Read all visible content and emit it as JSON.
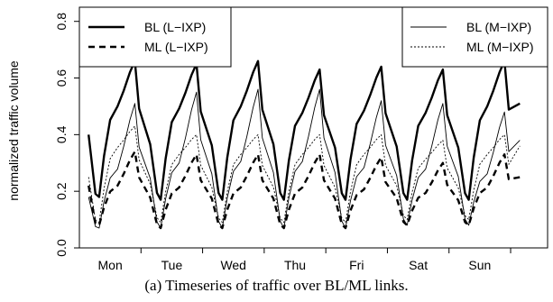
{
  "caption": "(a) Timeseries of traffic over BL/ML links.",
  "chart_data": {
    "type": "line",
    "title": "",
    "xlabel": "",
    "ylabel": "normalized traffic volume",
    "categories": [
      "Mon",
      "Tue",
      "Wed",
      "Thu",
      "Fri",
      "Sat",
      "Sun"
    ],
    "xlim": [
      0,
      7.6
    ],
    "ylim": [
      0,
      0.85
    ],
    "yticks": [
      0.0,
      0.2,
      0.4,
      0.6,
      0.8
    ],
    "ytick_labels": [
      "0.0",
      "0.2",
      "0.4",
      "0.6",
      "0.8"
    ],
    "grid": false,
    "legends": [
      {
        "placement": "top-left",
        "entries": [
          "BL (L−IXP)",
          "ML (L−IXP)"
        ]
      },
      {
        "placement": "top-right",
        "entries": [
          "BL (M−IXP)",
          "ML (M−IXP)"
        ]
      }
    ],
    "series": [
      {
        "name": "BL (L−IXP)",
        "style": "solid-thick",
        "daily_profile": {
          "start": 0.4,
          "trough": 0.18,
          "shoulder": 0.5,
          "peak": 0.66
        },
        "peaks_by_day": [
          0.66,
          0.65,
          0.66,
          0.63,
          0.64,
          0.63,
          0.66
        ],
        "troughs_by_day": [
          0.18,
          0.17,
          0.17,
          0.17,
          0.17,
          0.17,
          0.17
        ],
        "end": 0.51
      },
      {
        "name": "ML (L−IXP)",
        "style": "dashed-thick",
        "daily_profile": {
          "start": 0.22,
          "trough": 0.08,
          "shoulder": 0.22,
          "peak": 0.34
        },
        "peaks_by_day": [
          0.34,
          0.33,
          0.33,
          0.33,
          0.32,
          0.3,
          0.33
        ],
        "troughs_by_day": [
          0.08,
          0.07,
          0.07,
          0.07,
          0.07,
          0.08,
          0.08
        ],
        "end": 0.25
      },
      {
        "name": "BL (M−IXP)",
        "style": "solid-thin",
        "daily_profile": {
          "start": 0.18,
          "trough": 0.07,
          "shoulder": 0.3,
          "peak": 0.55
        },
        "peaks_by_day": [
          0.51,
          0.55,
          0.56,
          0.56,
          0.52,
          0.51,
          0.48
        ],
        "troughs_by_day": [
          0.07,
          0.07,
          0.07,
          0.07,
          0.07,
          0.08,
          0.08
        ],
        "end": 0.38
      },
      {
        "name": "ML (M−IXP)",
        "style": "dotted-thin",
        "daily_profile": {
          "start": 0.25,
          "trough": 0.09,
          "shoulder": 0.33,
          "peak": 0.4
        },
        "peaks_by_day": [
          0.43,
          0.4,
          0.4,
          0.4,
          0.4,
          0.38,
          0.4
        ],
        "troughs_by_day": [
          0.09,
          0.09,
          0.09,
          0.09,
          0.09,
          0.1,
          0.1
        ],
        "end": 0.36
      }
    ]
  }
}
